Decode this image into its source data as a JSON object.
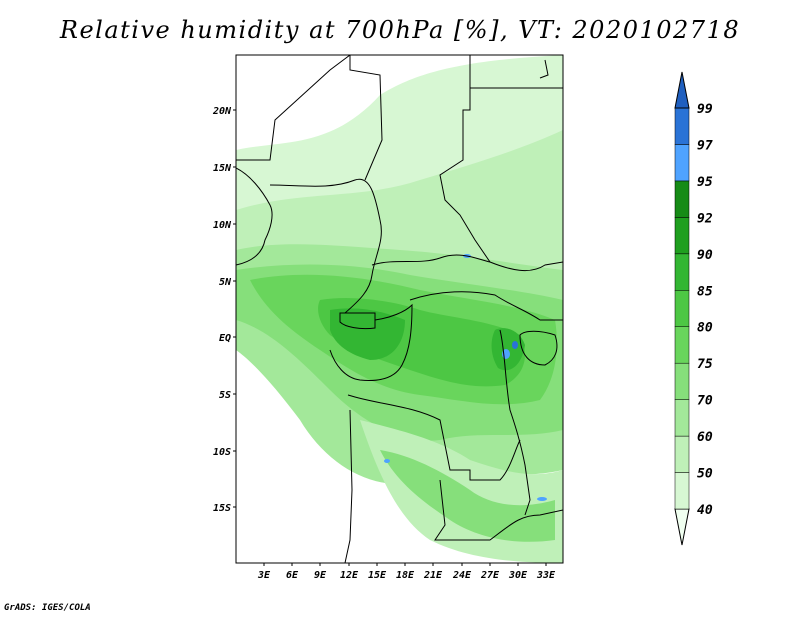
{
  "title": "Relative humidity at 700hPa [%], VT: 2020102718",
  "credit": "GrADS: IGES/COLA",
  "map": {
    "lon_range": [
      0,
      36
    ],
    "lat_range": [
      -20,
      25
    ],
    "lat_ticks": [
      "20N",
      "15N",
      "10N",
      "5N",
      "EQ",
      "5S",
      "10S",
      "15S"
    ],
    "lon_ticks": [
      "3E",
      "6E",
      "9E",
      "12E",
      "15E",
      "18E",
      "21E",
      "24E",
      "27E",
      "30E",
      "33E"
    ]
  },
  "colorbar": {
    "levels": [
      "40",
      "50",
      "60",
      "70",
      "75",
      "80",
      "85",
      "90",
      "92",
      "95",
      "97",
      "99"
    ],
    "colors": [
      "#f0fff0",
      "#d7f7d3",
      "#bff0b8",
      "#a3e89a",
      "#86df7b",
      "#69d55c",
      "#4dc744",
      "#33b633",
      "#1f9f1f",
      "#168b16",
      "#4fa3ff",
      "#2a73d6",
      "#1f5fbf"
    ]
  }
}
